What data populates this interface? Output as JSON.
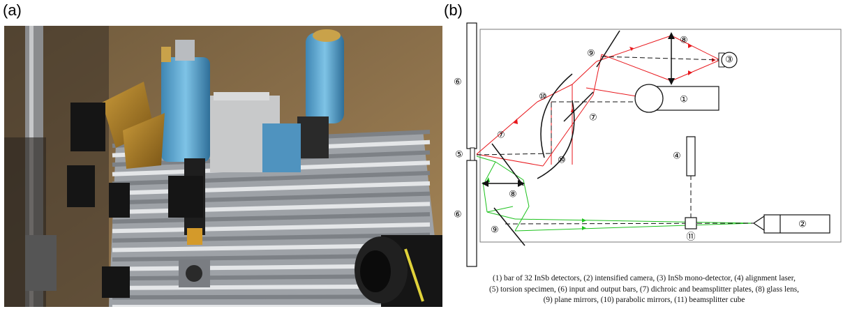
{
  "panels": {
    "a_label": "(a)",
    "b_label": "(b)"
  },
  "diagram": {
    "component_markers": {
      "input_bar": "⑥",
      "output_bar": "⑥",
      "specimen": "⑤",
      "bar_detectors": "①",
      "camera": "②",
      "mono_detector": "③",
      "laser": "④",
      "dichroic_upper": "⑦",
      "dichroic_lower": "⑦",
      "lens_upper": "⑧",
      "lens_lower": "⑧",
      "plane_mirror_upper": "⑨",
      "plane_mirror_lower": "⑨",
      "parabolic_upper": "⑩",
      "parabolic_lower": "⑩",
      "beamsplitter_cube": "⑪"
    },
    "colors": {
      "red_path": "#e8161b",
      "green_path": "#1ec21e",
      "lines": "#111111"
    }
  },
  "caption": {
    "line1": "(1) bar of 32 InSb detectors, (2) intensified camera, (3) InSb mono-detector, (4) alignment laser,",
    "line2": "(5) torsion specimen, (6) input and output bars, (7) dichroic and beamsplitter plates, (8) glass lens,",
    "line3": "(9) plane mirrors, (10) parabolic mirrors, (11) beamsplitter cube"
  }
}
